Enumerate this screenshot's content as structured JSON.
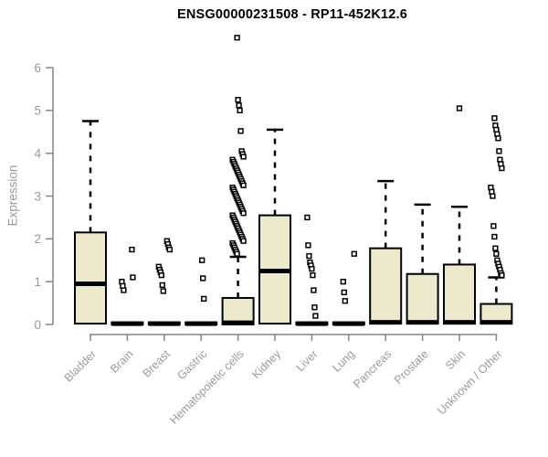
{
  "header": {
    "title": "ENSG00000231508 - RP11-452K12.6"
  },
  "chart_data": {
    "type": "boxplot",
    "title": "ENSG00000231508 - RP11-452K12.6",
    "xlabel": "",
    "ylabel": "Expression",
    "ylim": [
      0,
      6.8
    ],
    "yticks": [
      0,
      1,
      2,
      3,
      4,
      5,
      6
    ],
    "grid": false,
    "legend": "none",
    "categories": [
      "Bladder",
      "Brain",
      "Breast",
      "Gastric",
      "Hematopoietic cells",
      "Kidney",
      "Liver",
      "Lung",
      "Pancreas",
      "Prostate",
      "Skin",
      "Unknown / Other"
    ],
    "colors": {
      "box_fill": "#EDE9CD",
      "box_border": "#000000",
      "median": "#000000",
      "whisker": "#000000",
      "outlier_stroke": "#000000",
      "outlier_fill": "#ffffff",
      "axis": "#858585",
      "label": "#9a9a9a",
      "title": "#000000",
      "background": "#ffffff"
    },
    "series": [
      {
        "category": "Bladder",
        "q1": 0.02,
        "median": 0.95,
        "q3": 2.15,
        "whisker_low": 0,
        "whisker_high": 4.75,
        "outliers": []
      },
      {
        "category": "Brain",
        "q1": 0,
        "median": 0.02,
        "q3": 0.05,
        "whisker_low": 0,
        "whisker_high": 0.05,
        "outliers": [
          1.75,
          1.1,
          1.0,
          0.9,
          0.8
        ]
      },
      {
        "category": "Breast",
        "q1": 0,
        "median": 0.02,
        "q3": 0.05,
        "whisker_low": 0,
        "whisker_high": 0.05,
        "outliers": [
          1.95,
          1.88,
          1.8,
          1.75,
          1.35,
          1.28,
          1.22,
          1.15,
          0.92,
          0.78
        ]
      },
      {
        "category": "Gastric",
        "q1": 0,
        "median": 0.02,
        "q3": 0.05,
        "whisker_low": 0,
        "whisker_high": 0.05,
        "outliers": [
          1.5,
          1.08,
          0.6
        ]
      },
      {
        "category": "Hematopoietic cells",
        "q1": 0,
        "median": 0.04,
        "q3": 0.62,
        "whisker_low": 0,
        "whisker_high": 1.58,
        "outliers": [
          6.7,
          5.25,
          5.12,
          5.0,
          4.52,
          4.05,
          3.98,
          3.92,
          3.85,
          3.8,
          3.75,
          3.7,
          3.65,
          3.6,
          3.55,
          3.5,
          3.45,
          3.4,
          3.35,
          3.3,
          3.25,
          3.2,
          3.15,
          3.1,
          3.05,
          3.0,
          2.95,
          2.9,
          2.85,
          2.8,
          2.75,
          2.7,
          2.65,
          2.6,
          2.55,
          2.5,
          2.45,
          2.4,
          2.35,
          2.3,
          2.25,
          2.2,
          2.15,
          2.1,
          2.05,
          2.0,
          1.95,
          1.9,
          1.85,
          1.8,
          1.75,
          1.7,
          1.65
        ]
      },
      {
        "category": "Kidney",
        "q1": 0.02,
        "median": 1.25,
        "q3": 2.55,
        "whisker_low": 0,
        "whisker_high": 4.55,
        "outliers": []
      },
      {
        "category": "Liver",
        "q1": 0,
        "median": 0.02,
        "q3": 0.05,
        "whisker_low": 0,
        "whisker_high": 0.05,
        "outliers": [
          2.5,
          1.85,
          1.6,
          1.45,
          1.38,
          1.3,
          1.15,
          0.8,
          0.4,
          0.2
        ]
      },
      {
        "category": "Lung",
        "q1": 0,
        "median": 0.02,
        "q3": 0.05,
        "whisker_low": 0,
        "whisker_high": 0.05,
        "outliers": [
          1.65,
          1.0,
          0.75,
          0.55
        ]
      },
      {
        "category": "Pancreas",
        "q1": 0.02,
        "median": 0.05,
        "q3": 1.78,
        "whisker_low": 0,
        "whisker_high": 3.35,
        "outliers": []
      },
      {
        "category": "Prostate",
        "q1": 0.02,
        "median": 0.05,
        "q3": 1.18,
        "whisker_low": 0,
        "whisker_high": 2.8,
        "outliers": []
      },
      {
        "category": "Skin",
        "q1": 0.02,
        "median": 0.05,
        "q3": 1.4,
        "whisker_low": 0,
        "whisker_high": 2.75,
        "outliers": [
          5.05
        ]
      },
      {
        "category": "Unknown / Other",
        "q1": 0.02,
        "median": 0.05,
        "q3": 0.48,
        "whisker_low": 0,
        "whisker_high": 1.1,
        "outliers": [
          4.82,
          4.65,
          4.55,
          4.45,
          4.35,
          4.05,
          3.85,
          3.75,
          3.65,
          3.2,
          3.1,
          3.0,
          2.3,
          2.05,
          1.78,
          1.65,
          1.5,
          1.42,
          1.35,
          1.28,
          1.2,
          1.15
        ]
      }
    ]
  }
}
